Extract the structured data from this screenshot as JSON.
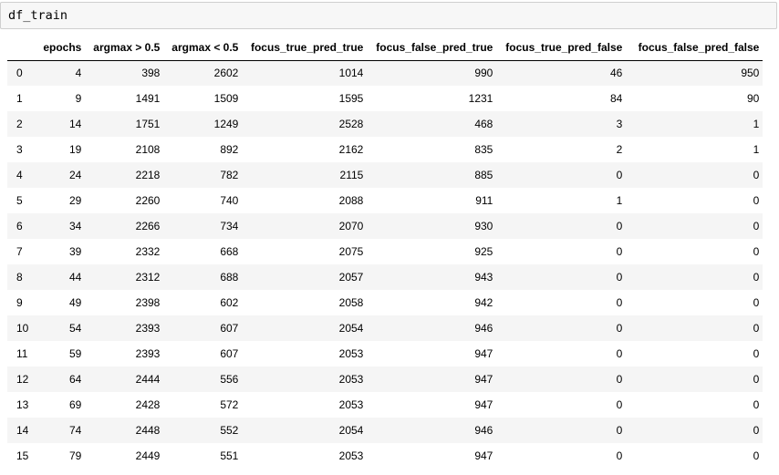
{
  "cell": {
    "code": "df_train"
  },
  "table": {
    "columns": [
      "",
      "epochs",
      "argmax > 0.5",
      "argmax < 0.5",
      "focus_true_pred_true",
      "focus_false_pred_true",
      "focus_true_pred_false",
      "focus_false_pred_false"
    ],
    "rows": [
      [
        "0",
        "4",
        "398",
        "2602",
        "1014",
        "990",
        "46",
        "950"
      ],
      [
        "1",
        "9",
        "1491",
        "1509",
        "1595",
        "1231",
        "84",
        "90"
      ],
      [
        "2",
        "14",
        "1751",
        "1249",
        "2528",
        "468",
        "3",
        "1"
      ],
      [
        "3",
        "19",
        "2108",
        "892",
        "2162",
        "835",
        "2",
        "1"
      ],
      [
        "4",
        "24",
        "2218",
        "782",
        "2115",
        "885",
        "0",
        "0"
      ],
      [
        "5",
        "29",
        "2260",
        "740",
        "2088",
        "911",
        "1",
        "0"
      ],
      [
        "6",
        "34",
        "2266",
        "734",
        "2070",
        "930",
        "0",
        "0"
      ],
      [
        "7",
        "39",
        "2332",
        "668",
        "2075",
        "925",
        "0",
        "0"
      ],
      [
        "8",
        "44",
        "2312",
        "688",
        "2057",
        "943",
        "0",
        "0"
      ],
      [
        "9",
        "49",
        "2398",
        "602",
        "2058",
        "942",
        "0",
        "0"
      ],
      [
        "10",
        "54",
        "2393",
        "607",
        "2054",
        "946",
        "0",
        "0"
      ],
      [
        "11",
        "59",
        "2393",
        "607",
        "2053",
        "947",
        "0",
        "0"
      ],
      [
        "12",
        "64",
        "2444",
        "556",
        "2053",
        "947",
        "0",
        "0"
      ],
      [
        "13",
        "69",
        "2428",
        "572",
        "2053",
        "947",
        "0",
        "0"
      ],
      [
        "14",
        "74",
        "2448",
        "552",
        "2054",
        "946",
        "0",
        "0"
      ],
      [
        "15",
        "79",
        "2449",
        "551",
        "2053",
        "947",
        "0",
        "0"
      ]
    ]
  }
}
